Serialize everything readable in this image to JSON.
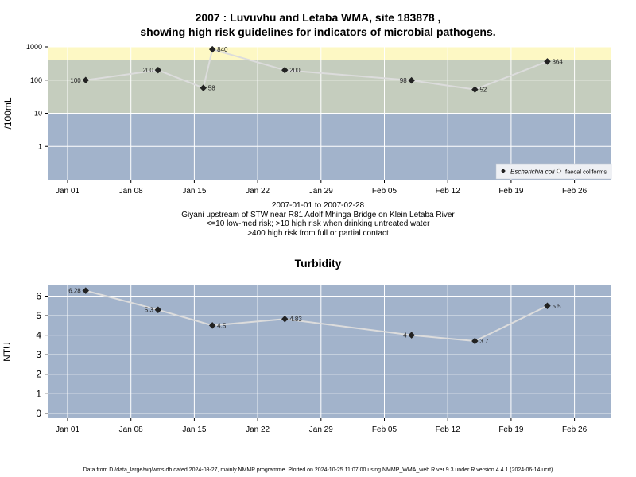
{
  "charts_header": {
    "title_line1": "2007 : Luvuvhu and Letaba WMA, site 183878 ,",
    "title_line2": "showing high risk guidelines for indicators of microbial pathogens."
  },
  "subtitle": {
    "line1": "2007-01-01 to 2007-02-28",
    "line2": "Giyani upstream of STW near R81 Adolf Mhinga Bridge on Klein Letaba River",
    "line3": "<=10 low-med risk; >10 high risk when drinking untreated water",
    "line4": ">400 high risk from full or partial contact"
  },
  "footer": "Data from D:/data_large/wq/wms.db dated 2024-08-27, mainly NMMP programme. Plotted on 2024-10-25 11:07:00 using NMMP_WMA_web.R ver 9.3 under R version 4.4.1 (2024-06-14 ucrt)",
  "colors": {
    "band_low": "#a2b3cb",
    "band_mid": "#c5cdbe",
    "band_high": "#fdf8c4",
    "line": "#dcdcdc",
    "marker": "#222222"
  },
  "chart_data": [
    {
      "type": "line",
      "title": "",
      "ylabel": "/100mL",
      "y_scale": "log",
      "ylim": [
        0.1,
        1000
      ],
      "xlim": [
        "2006-12-28",
        "2007-02-28"
      ],
      "x_ticks": [
        "Jan 01",
        "Jan 08",
        "Jan 15",
        "Jan 22",
        "Jan 29",
        "Feb 05",
        "Feb 12",
        "Feb 19",
        "Feb 26"
      ],
      "y_ticks": [
        "1",
        "10",
        "100",
        "1000"
      ],
      "bands": [
        {
          "from": 0.1,
          "to": 10,
          "color": "#a2b3cb"
        },
        {
          "from": 10,
          "to": 400,
          "color": "#c5cdbe"
        },
        {
          "from": 400,
          "to": 1000,
          "color": "#fdf8c4"
        }
      ],
      "grid": true,
      "legend_position": "bottom-right",
      "legend": [
        "Escherichia coli",
        "faecal coliforms"
      ],
      "series": [
        {
          "name": "Escherichia coli",
          "x": [
            "2007-01-03",
            "2007-01-11",
            "2007-01-16",
            "2007-01-17",
            "2007-01-25",
            "2007-02-08",
            "2007-02-15",
            "2007-02-23"
          ],
          "y": [
            100,
            200,
            58,
            840,
            200,
            98,
            52,
            364
          ],
          "labels": [
            "100",
            "200",
            "58",
            "840",
            "200",
            "98",
            "52",
            "364"
          ],
          "label_side": [
            "left",
            "left",
            "right",
            "right",
            "right",
            "left",
            "right",
            "right"
          ]
        }
      ]
    },
    {
      "type": "line",
      "title": "Turbidity",
      "ylabel": "NTU",
      "ylim": [
        -0.25,
        6.55
      ],
      "xlim": [
        "2006-12-28",
        "2007-02-28"
      ],
      "x_ticks": [
        "Jan 01",
        "Jan 08",
        "Jan 15",
        "Jan 22",
        "Jan 29",
        "Feb 05",
        "Feb 12",
        "Feb 19",
        "Feb 26"
      ],
      "y_ticks": [
        "0",
        "1",
        "2",
        "3",
        "4",
        "5",
        "6"
      ],
      "grid": true,
      "series": [
        {
          "name": "",
          "x": [
            "2007-01-03",
            "2007-01-11",
            "2007-01-17",
            "2007-01-25",
            "2007-02-08",
            "2007-02-15",
            "2007-02-23"
          ],
          "y": [
            6.28,
            5.3,
            4.5,
            4.83,
            4,
            3.7,
            5.5
          ],
          "labels": [
            "6.28",
            "5.3",
            "4.5",
            "4.83",
            "4",
            "3.7",
            "5.5"
          ],
          "label_side": [
            "left",
            "left",
            "right",
            "right",
            "left",
            "right",
            "right"
          ]
        }
      ]
    }
  ]
}
